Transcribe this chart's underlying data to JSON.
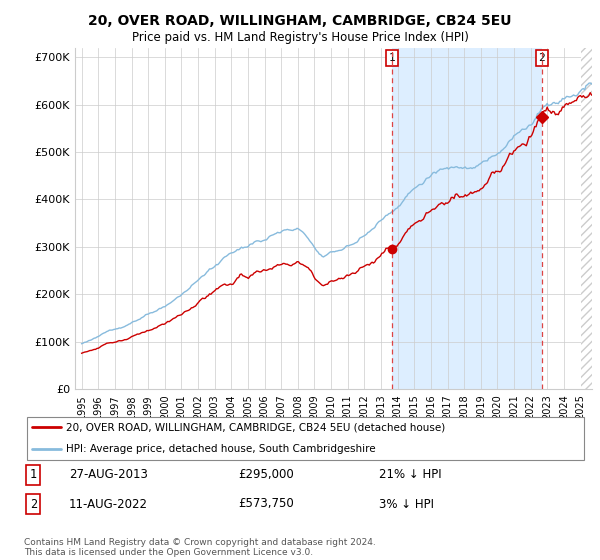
{
  "title": "20, OVER ROAD, WILLINGHAM, CAMBRIDGE, CB24 5EU",
  "subtitle": "Price paid vs. HM Land Registry's House Price Index (HPI)",
  "ylim": [
    0,
    720000
  ],
  "yticks": [
    0,
    100000,
    200000,
    300000,
    400000,
    500000,
    600000,
    700000
  ],
  "sale1_price": 295000,
  "sale1_label": "1",
  "sale1_date_str": "27-AUG-2013",
  "sale1_hpi_pct": "21% ↓ HPI",
  "sale2_price": 573750,
  "sale2_label": "2",
  "sale2_date_str": "11-AUG-2022",
  "sale2_hpi_pct": "3% ↓ HPI",
  "property_label": "20, OVER ROAD, WILLINGHAM, CAMBRIDGE, CB24 5EU (detached house)",
  "hpi_label": "HPI: Average price, detached house, South Cambridgeshire",
  "footer": "Contains HM Land Registry data © Crown copyright and database right 2024.\nThis data is licensed under the Open Government Licence v3.0.",
  "line_color_property": "#cc0000",
  "line_color_hpi": "#88bbdd",
  "shade_color": "#ddeeff",
  "dashed_vline_color": "#dd4444",
  "grid_color": "#cccccc",
  "hatch_color": "#cccccc"
}
